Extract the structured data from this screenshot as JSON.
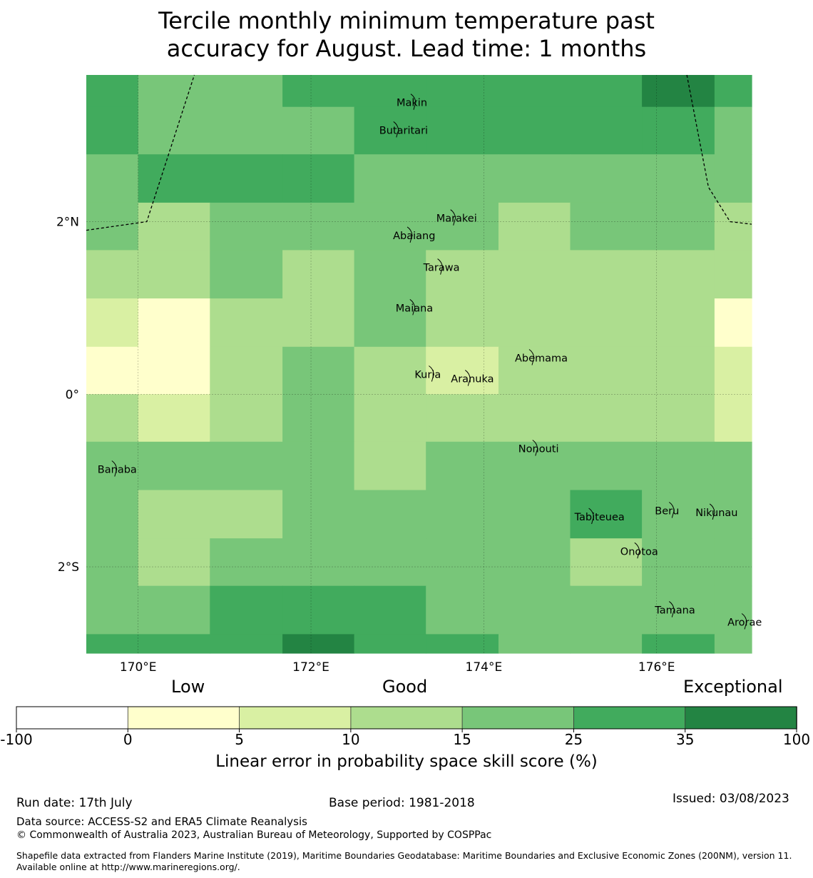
{
  "title_line1": "Tercile monthly minimum temperature past",
  "title_line2": "accuracy for August. Lead time: 1 months",
  "map": {
    "lon_range": [
      169.4,
      177.1
    ],
    "lat_range": [
      -3.0,
      3.7
    ],
    "lon_ticks": [
      {
        "value": 170,
        "label": "170°E"
      },
      {
        "value": 172,
        "label": "172°E"
      },
      {
        "value": 174,
        "label": "174°E"
      },
      {
        "value": 176,
        "label": "176°E"
      }
    ],
    "lat_ticks": [
      {
        "value": 2,
        "label": "2°N"
      },
      {
        "value": 0,
        "label": "0°"
      },
      {
        "value": -2,
        "label": "2°S"
      }
    ],
    "grid_lon_edges": [
      169.4,
      170.0,
      170.83,
      171.67,
      172.5,
      173.33,
      174.17,
      175.0,
      175.83,
      176.67,
      177.1
    ],
    "grid_lat_edges": [
      3.7,
      3.33,
      2.78,
      2.22,
      1.67,
      1.11,
      0.55,
      0.0,
      -0.55,
      -1.11,
      -1.67,
      -2.22,
      -2.78,
      -3.0
    ],
    "skill_grid": [
      [
        5,
        4,
        4,
        5,
        5,
        5,
        5,
        5,
        6,
        5
      ],
      [
        5,
        4,
        4,
        4,
        5,
        5,
        5,
        5,
        5,
        4
      ],
      [
        4,
        5,
        5,
        5,
        4,
        4,
        4,
        4,
        4,
        4
      ],
      [
        4,
        3,
        4,
        4,
        4,
        4,
        3,
        4,
        4,
        3
      ],
      [
        3,
        3,
        4,
        3,
        4,
        3,
        3,
        3,
        3,
        3
      ],
      [
        2,
        1,
        3,
        3,
        4,
        3,
        3,
        3,
        3,
        1
      ],
      [
        1,
        1,
        3,
        4,
        3,
        2,
        3,
        3,
        3,
        2
      ],
      [
        3,
        2,
        3,
        4,
        3,
        3,
        3,
        3,
        3,
        2
      ],
      [
        4,
        4,
        4,
        4,
        3,
        4,
        4,
        4,
        4,
        4
      ],
      [
        4,
        3,
        3,
        4,
        4,
        4,
        4,
        5,
        4,
        4
      ],
      [
        4,
        3,
        4,
        4,
        4,
        4,
        4,
        3,
        4,
        4
      ],
      [
        4,
        4,
        5,
        5,
        5,
        4,
        4,
        4,
        4,
        4
      ],
      [
        5,
        5,
        5,
        6,
        5,
        5,
        4,
        4,
        5,
        4
      ]
    ],
    "boundaries": [
      [
        [
          169.4,
          1.9
        ],
        [
          170.1,
          2.0
        ],
        [
          170.65,
          3.7
        ]
      ],
      [
        [
          176.35,
          3.7
        ],
        [
          176.6,
          2.4
        ],
        [
          176.85,
          2.0
        ],
        [
          177.1,
          1.97
        ]
      ]
    ],
    "islands": [
      {
        "name": "Makin",
        "lon": 172.99,
        "lat": 3.38
      },
      {
        "name": "Butaritari",
        "lon": 172.79,
        "lat": 3.06
      },
      {
        "name": "Marakei",
        "lon": 173.45,
        "lat": 2.04
      },
      {
        "name": "Abaiang",
        "lon": 172.95,
        "lat": 1.84
      },
      {
        "name": "Tarawa",
        "lon": 173.3,
        "lat": 1.47
      },
      {
        "name": "Maiana",
        "lon": 172.98,
        "lat": 1.0
      },
      {
        "name": "Abemama",
        "lon": 174.36,
        "lat": 0.42
      },
      {
        "name": "Kuria",
        "lon": 173.2,
        "lat": 0.23
      },
      {
        "name": "Aranuka",
        "lon": 173.62,
        "lat": 0.18
      },
      {
        "name": "Nonouti",
        "lon": 174.4,
        "lat": -0.63
      },
      {
        "name": "Banaba",
        "lon": 169.53,
        "lat": -0.87
      },
      {
        "name": "Tabiteuea",
        "lon": 175.05,
        "lat": -1.42
      },
      {
        "name": "Beru",
        "lon": 175.98,
        "lat": -1.35
      },
      {
        "name": "Nikunau",
        "lon": 176.45,
        "lat": -1.37
      },
      {
        "name": "Onotoa",
        "lon": 175.58,
        "lat": -1.82
      },
      {
        "name": "Tamana",
        "lon": 175.98,
        "lat": -2.5
      },
      {
        "name": "Arorae",
        "lon": 176.82,
        "lat": -2.64
      }
    ]
  },
  "colorbar": {
    "categories": [
      {
        "word": "Low"
      },
      {
        "word": "Good"
      },
      {
        "word": "Exceptional"
      }
    ],
    "ticks": [
      "-100",
      "0",
      "5",
      "10",
      "15",
      "25",
      "35",
      "100"
    ],
    "colors": [
      "#ffffff",
      "#ffffcc",
      "#d9f0a3",
      "#addd8e",
      "#78c679",
      "#41ab5d",
      "#238443"
    ],
    "label": "Linear error in probability space skill score (%)"
  },
  "footer": {
    "run_date": "Run date: 17th July",
    "base_period": "Base period: 1981-2018",
    "issued": "Issued: 03/08/2023",
    "data_source": "Data source: ACCESS-S2 and ERA5 Climate Reanalysis",
    "copyright": "© Commonwealth of Australia 2023, Australian Bureau of Meteorology, Supported by COSPPac",
    "shapefile": "Shapefile data extracted from Flanders Marine Institute (2019), Maritime Boundaries Geodatabase: Maritime Boundaries and Exclusive Economic Zones (200NM), version 11. Available online at http://www.marineregions.org/."
  }
}
